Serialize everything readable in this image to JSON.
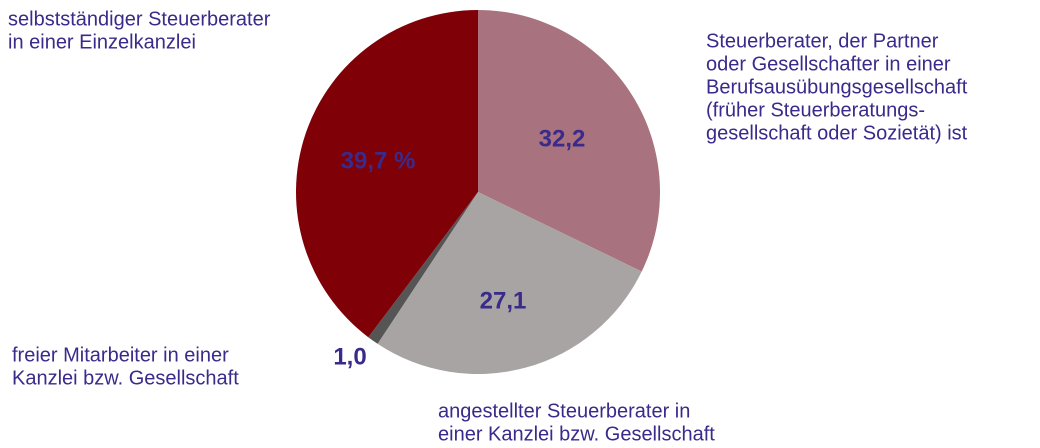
{
  "chart_data": {
    "type": "pie",
    "categories": [
      [
        "Steuerberater, der Partner",
        "oder Gesellschafter in einer",
        "Berufsausübungsgesellschaft",
        "(früher Steuerberatungs-",
        "gesellschaft oder Sozietät) ist"
      ],
      [
        "angestellter Steuerberater in",
        "einer Kanzlei bzw. Gesellschaft"
      ],
      [
        "freier Mitarbeiter in einer",
        "Kanzlei bzw. Gesellschaft"
      ],
      [
        "selbstständiger Steuerberater",
        "in einer Einzelkanzlei"
      ]
    ],
    "values": [
      32.2,
      27.1,
      1.0,
      39.7
    ],
    "value_labels": [
      "32,2",
      "27,1",
      "1,0",
      "39,7 %"
    ],
    "colors": [
      "#a8727e",
      "#a8a4a3",
      "#555555",
      "#800008"
    ]
  }
}
